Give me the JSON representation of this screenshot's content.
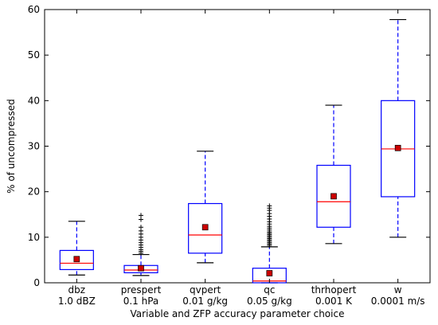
{
  "chart_data": {
    "type": "box",
    "xlabel": "Variable and ZFP accuracy parameter choice",
    "ylabel": "% of uncompressed",
    "ylim": [
      0,
      60
    ],
    "yticks": [
      0,
      10,
      20,
      30,
      40,
      50,
      60
    ],
    "grid": false,
    "colors": {
      "box": "#0000ff",
      "median": "#ff0000",
      "mean": "#cc0000",
      "whisker_cap": "#000000"
    },
    "categories": [
      {
        "name": "dbz",
        "param": "1.0 dBZ"
      },
      {
        "name": "prespert",
        "param": "0.1 hPa"
      },
      {
        "name": "qvpert",
        "param": "0.01 g/kg"
      },
      {
        "name": "qc",
        "param": "0.05 g/kg"
      },
      {
        "name": "thrhopert",
        "param": "0.001 K"
      },
      {
        "name": "w",
        "param": "0.0001 m/s"
      }
    ],
    "boxes": [
      {
        "min": 1.7,
        "q1": 2.9,
        "median": 4.3,
        "q3": 7.1,
        "max": 13.5,
        "mean": 5.2,
        "fliers": []
      },
      {
        "min": 1.6,
        "q1": 2.2,
        "median": 2.8,
        "q3": 3.8,
        "max": 6.2,
        "mean": 3.2,
        "fliers": [
          6.5,
          6.9,
          7.3,
          7.8,
          8.3,
          8.8,
          9.4,
          10.0,
          10.7,
          11.4,
          12.2,
          13.9,
          14.8
        ]
      },
      {
        "min": 4.4,
        "q1": 6.5,
        "median": 10.5,
        "q3": 17.4,
        "max": 28.9,
        "mean": 12.2,
        "fliers": []
      },
      {
        "min": 0,
        "q1": 0,
        "median": 0.4,
        "q3": 3.2,
        "max": 7.9,
        "mean": 2.1,
        "fliers": [
          8.2,
          8.5,
          8.8,
          9.1,
          9.4,
          9.7,
          10.0,
          10.3,
          10.6,
          10.9,
          11.2,
          11.6,
          12.0,
          12.4,
          12.9,
          13.4,
          14.0,
          14.6,
          15.2,
          15.9,
          16.4,
          16.9
        ]
      },
      {
        "min": 8.6,
        "q1": 12.2,
        "median": 17.8,
        "q3": 25.8,
        "max": 39.0,
        "mean": 19.0,
        "fliers": []
      },
      {
        "min": 10.0,
        "q1": 18.9,
        "median": 29.4,
        "q3": 40.0,
        "max": 57.8,
        "mean": 29.6,
        "fliers": []
      }
    ]
  }
}
